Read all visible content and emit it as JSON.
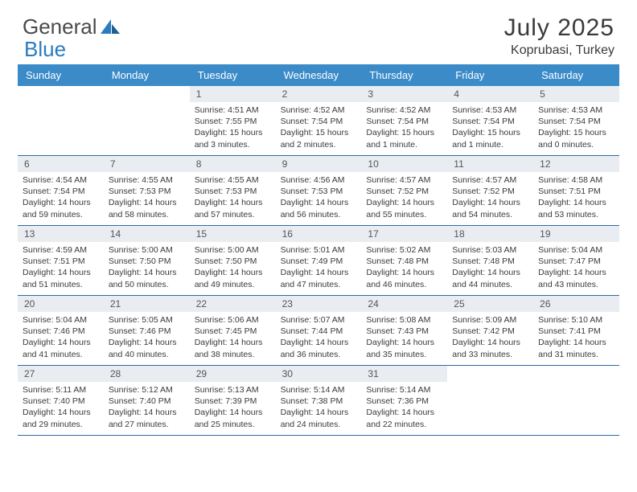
{
  "logo": {
    "word1": "General",
    "word2": "Blue"
  },
  "title": "July 2025",
  "location": "Koprubasi, Turkey",
  "colors": {
    "header_bg": "#3b8bc9",
    "week_border": "#2b6ca3",
    "daynum_bg": "#e9edf1",
    "text": "#3a3a3a",
    "logo_gray": "#4a4a4a",
    "logo_blue": "#2b7bbf"
  },
  "day_names": [
    "Sunday",
    "Monday",
    "Tuesday",
    "Wednesday",
    "Thursday",
    "Friday",
    "Saturday"
  ],
  "weeks": [
    [
      {
        "num": "",
        "text": ""
      },
      {
        "num": "",
        "text": ""
      },
      {
        "num": "1",
        "text": "Sunrise: 4:51 AM\nSunset: 7:55 PM\nDaylight: 15 hours and 3 minutes."
      },
      {
        "num": "2",
        "text": "Sunrise: 4:52 AM\nSunset: 7:54 PM\nDaylight: 15 hours and 2 minutes."
      },
      {
        "num": "3",
        "text": "Sunrise: 4:52 AM\nSunset: 7:54 PM\nDaylight: 15 hours and 1 minute."
      },
      {
        "num": "4",
        "text": "Sunrise: 4:53 AM\nSunset: 7:54 PM\nDaylight: 15 hours and 1 minute."
      },
      {
        "num": "5",
        "text": "Sunrise: 4:53 AM\nSunset: 7:54 PM\nDaylight: 15 hours and 0 minutes."
      }
    ],
    [
      {
        "num": "6",
        "text": "Sunrise: 4:54 AM\nSunset: 7:54 PM\nDaylight: 14 hours and 59 minutes."
      },
      {
        "num": "7",
        "text": "Sunrise: 4:55 AM\nSunset: 7:53 PM\nDaylight: 14 hours and 58 minutes."
      },
      {
        "num": "8",
        "text": "Sunrise: 4:55 AM\nSunset: 7:53 PM\nDaylight: 14 hours and 57 minutes."
      },
      {
        "num": "9",
        "text": "Sunrise: 4:56 AM\nSunset: 7:53 PM\nDaylight: 14 hours and 56 minutes."
      },
      {
        "num": "10",
        "text": "Sunrise: 4:57 AM\nSunset: 7:52 PM\nDaylight: 14 hours and 55 minutes."
      },
      {
        "num": "11",
        "text": "Sunrise: 4:57 AM\nSunset: 7:52 PM\nDaylight: 14 hours and 54 minutes."
      },
      {
        "num": "12",
        "text": "Sunrise: 4:58 AM\nSunset: 7:51 PM\nDaylight: 14 hours and 53 minutes."
      }
    ],
    [
      {
        "num": "13",
        "text": "Sunrise: 4:59 AM\nSunset: 7:51 PM\nDaylight: 14 hours and 51 minutes."
      },
      {
        "num": "14",
        "text": "Sunrise: 5:00 AM\nSunset: 7:50 PM\nDaylight: 14 hours and 50 minutes."
      },
      {
        "num": "15",
        "text": "Sunrise: 5:00 AM\nSunset: 7:50 PM\nDaylight: 14 hours and 49 minutes."
      },
      {
        "num": "16",
        "text": "Sunrise: 5:01 AM\nSunset: 7:49 PM\nDaylight: 14 hours and 47 minutes."
      },
      {
        "num": "17",
        "text": "Sunrise: 5:02 AM\nSunset: 7:48 PM\nDaylight: 14 hours and 46 minutes."
      },
      {
        "num": "18",
        "text": "Sunrise: 5:03 AM\nSunset: 7:48 PM\nDaylight: 14 hours and 44 minutes."
      },
      {
        "num": "19",
        "text": "Sunrise: 5:04 AM\nSunset: 7:47 PM\nDaylight: 14 hours and 43 minutes."
      }
    ],
    [
      {
        "num": "20",
        "text": "Sunrise: 5:04 AM\nSunset: 7:46 PM\nDaylight: 14 hours and 41 minutes."
      },
      {
        "num": "21",
        "text": "Sunrise: 5:05 AM\nSunset: 7:46 PM\nDaylight: 14 hours and 40 minutes."
      },
      {
        "num": "22",
        "text": "Sunrise: 5:06 AM\nSunset: 7:45 PM\nDaylight: 14 hours and 38 minutes."
      },
      {
        "num": "23",
        "text": "Sunrise: 5:07 AM\nSunset: 7:44 PM\nDaylight: 14 hours and 36 minutes."
      },
      {
        "num": "24",
        "text": "Sunrise: 5:08 AM\nSunset: 7:43 PM\nDaylight: 14 hours and 35 minutes."
      },
      {
        "num": "25",
        "text": "Sunrise: 5:09 AM\nSunset: 7:42 PM\nDaylight: 14 hours and 33 minutes."
      },
      {
        "num": "26",
        "text": "Sunrise: 5:10 AM\nSunset: 7:41 PM\nDaylight: 14 hours and 31 minutes."
      }
    ],
    [
      {
        "num": "27",
        "text": "Sunrise: 5:11 AM\nSunset: 7:40 PM\nDaylight: 14 hours and 29 minutes."
      },
      {
        "num": "28",
        "text": "Sunrise: 5:12 AM\nSunset: 7:40 PM\nDaylight: 14 hours and 27 minutes."
      },
      {
        "num": "29",
        "text": "Sunrise: 5:13 AM\nSunset: 7:39 PM\nDaylight: 14 hours and 25 minutes."
      },
      {
        "num": "30",
        "text": "Sunrise: 5:14 AM\nSunset: 7:38 PM\nDaylight: 14 hours and 24 minutes."
      },
      {
        "num": "31",
        "text": "Sunrise: 5:14 AM\nSunset: 7:36 PM\nDaylight: 14 hours and 22 minutes."
      },
      {
        "num": "",
        "text": ""
      },
      {
        "num": "",
        "text": ""
      }
    ]
  ]
}
